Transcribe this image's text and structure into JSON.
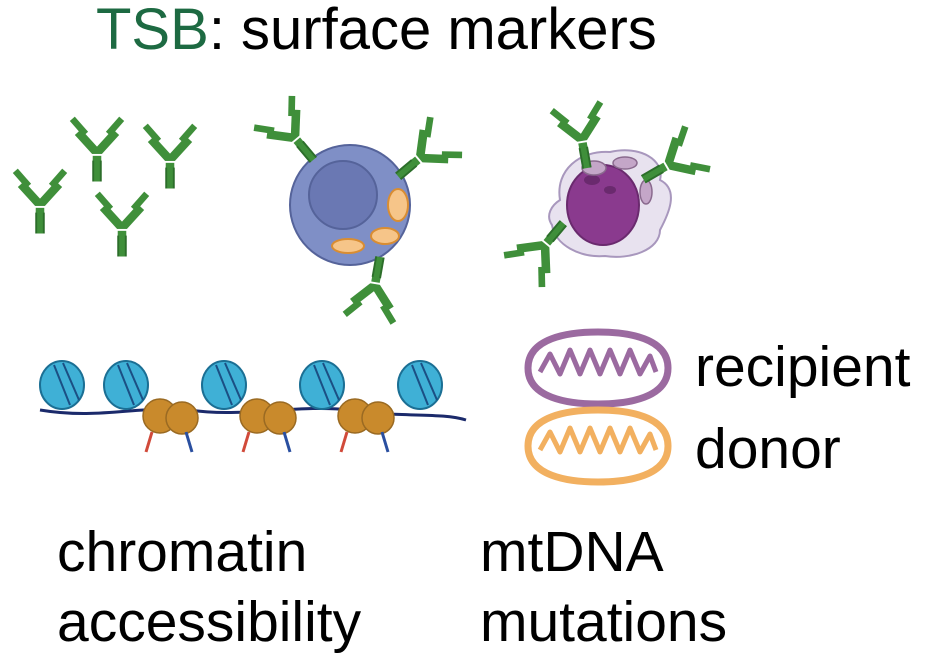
{
  "title": {
    "prefix": "TSB",
    "rest": ": surface markers"
  },
  "legend": {
    "recipient": "recipient",
    "donor": "donor"
  },
  "captions": {
    "chromatin_line1": "chromatin",
    "chromatin_line2": "accessibility",
    "mtdna_line1": "mtDNA",
    "mtdna_line2": "mutations"
  },
  "colors": {
    "title_accent": "#1d6a42",
    "antibody": "#3f8f3a",
    "cell_body": "#7f8fc6",
    "cell_nucleus": "#6a78b3",
    "myeloid_cytoplasm": "#e8e2ef",
    "myeloid_nucleus": "#8a3a8e",
    "recipient_mito": "#9b6aa0",
    "donor_mito": "#f2b060",
    "nucleosome": "#3fb0d6",
    "transcription_factor": "#c98a2c"
  }
}
